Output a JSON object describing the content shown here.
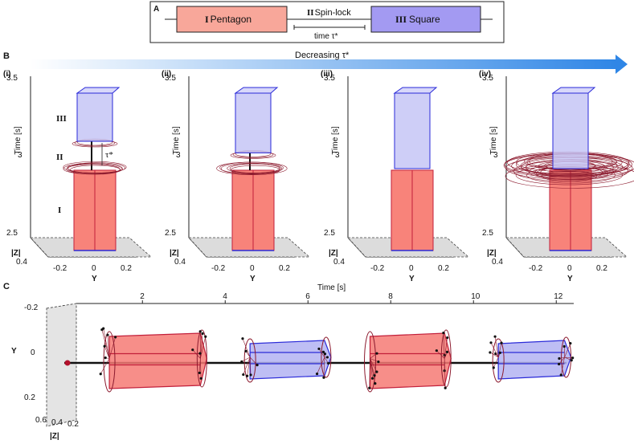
{
  "panel_a": {
    "label": "A",
    "phase1": {
      "numeral": "I",
      "name": "Pentagon",
      "color": "#f8a79a"
    },
    "phase2": {
      "numeral": "II",
      "name": "Spin-lock"
    },
    "phase3": {
      "numeral": "III",
      "name": "Square",
      "color": "#a39af2"
    },
    "bracket_label": "time τ*"
  },
  "panel_b": {
    "label": "B",
    "arrow_label": "Decreasing τ*",
    "tau_mark": "τ*",
    "axis": {
      "zlabel": "Time [s]",
      "ylabel": "Y",
      "zlabel2": "|Z|",
      "z_ticks": [
        "3.5",
        "3",
        "2.5"
      ],
      "y_ticks": [
        "-0.2",
        "0",
        "0.2"
      ],
      "absz_tick": "0.4"
    },
    "phase_labels": [
      "III",
      "II",
      "I"
    ],
    "subpanels": [
      {
        "label": "(i)",
        "spinlock": 1.0,
        "wisp": 0.4
      },
      {
        "label": "(ii)",
        "spinlock": 0.6,
        "wisp": 0.3
      },
      {
        "label": "(iii)",
        "spinlock": 0.0,
        "wisp": 0.0
      },
      {
        "label": "(iv)",
        "spinlock": 0.0,
        "wisp": 1.0
      }
    ]
  },
  "panel_c": {
    "label": "C",
    "time_label": "Time [s]",
    "time_ticks": [
      "2",
      "4",
      "6",
      "8",
      "10",
      "12"
    ],
    "time_values": [
      2,
      4,
      6,
      8,
      10,
      12
    ],
    "y_label": "Y",
    "y_ticks": [
      "-0.2",
      "0",
      "0.2"
    ],
    "z_label": "|Z|",
    "z_ticks": [
      "0.6",
      "0.4",
      "0.2"
    ],
    "segments": [
      {
        "shape": "pentagon",
        "start": 1.2,
        "end": 3.4
      },
      {
        "shape": "square",
        "start": 4.6,
        "end": 6.4
      },
      {
        "shape": "pentagon",
        "start": 7.5,
        "end": 9.3
      },
      {
        "shape": "square",
        "start": 10.6,
        "end": 12.2
      }
    ]
  },
  "colors": {
    "pentagon_fill": "#f67a74",
    "pentagon_edge": "#c21f3a",
    "square_fill": "#b3b3f2",
    "square_edge": "#2a2ad8",
    "arrow": "#2f86e6",
    "mesh": "#8c1a2e"
  }
}
